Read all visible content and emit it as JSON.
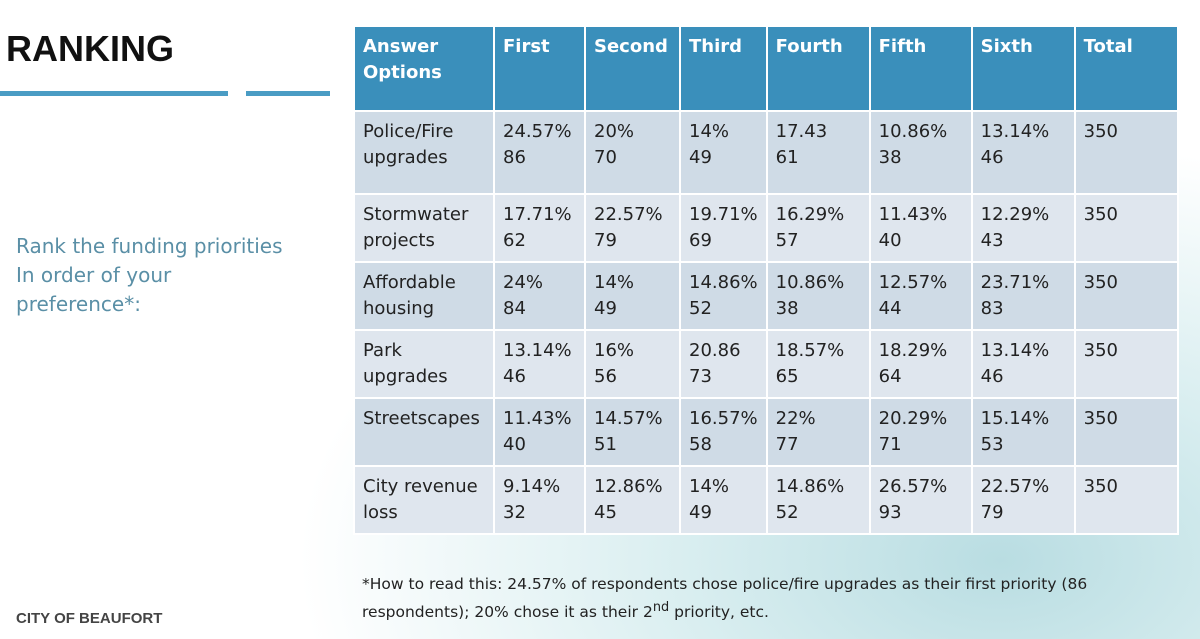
{
  "title": "RANKING",
  "prompt": {
    "lines": [
      "Rank the funding priorities",
      "In order of your",
      "preference*:"
    ]
  },
  "table": {
    "header": [
      "Answer Options",
      "First",
      "Second",
      "Third",
      "Fourth",
      "Fifth",
      "Sixth",
      "Total"
    ],
    "rows": [
      {
        "label": "Police/Fire upgrades",
        "cells": [
          [
            "24.57%",
            "86"
          ],
          [
            "20%",
            "70"
          ],
          [
            "14%",
            "49"
          ],
          [
            "17.43",
            "61"
          ],
          [
            "10.86%",
            "38"
          ],
          [
            "13.14%",
            "46"
          ]
        ],
        "total": "350"
      },
      {
        "label": "Stormwater projects",
        "cells": [
          [
            "17.71%",
            "62"
          ],
          [
            "22.57%",
            "79"
          ],
          [
            "19.71%",
            "69"
          ],
          [
            "16.29%",
            "57"
          ],
          [
            "11.43%",
            "40"
          ],
          [
            "12.29%",
            "43"
          ]
        ],
        "total": "350"
      },
      {
        "label": "Affordable housing",
        "cells": [
          [
            "24%",
            "84"
          ],
          [
            "14%",
            "49"
          ],
          [
            "14.86%",
            "52"
          ],
          [
            "10.86%",
            "38"
          ],
          [
            "12.57%",
            "44"
          ],
          [
            "23.71%",
            "83"
          ]
        ],
        "total": "350"
      },
      {
        "label": "Park upgrades",
        "cells": [
          [
            "13.14%",
            "46"
          ],
          [
            "16%",
            "56"
          ],
          [
            "20.86",
            "73"
          ],
          [
            "18.57%",
            "65"
          ],
          [
            "18.29%",
            "64"
          ],
          [
            "13.14%",
            "46"
          ]
        ],
        "total": "350"
      },
      {
        "label": "Streetscapes",
        "cells": [
          [
            "11.43%",
            "40"
          ],
          [
            "14.57%",
            "51"
          ],
          [
            "16.57%",
            "58"
          ],
          [
            "22%",
            "77"
          ],
          [
            "20.29%",
            "71"
          ],
          [
            "15.14%",
            "53"
          ]
        ],
        "total": "350"
      },
      {
        "label": "City revenue loss",
        "cells": [
          [
            "9.14%",
            "32"
          ],
          [
            "12.86%",
            "45"
          ],
          [
            "14%",
            "49"
          ],
          [
            "14.86%",
            "52"
          ],
          [
            "26.57%",
            "93"
          ],
          [
            "22.57%",
            "79"
          ]
        ],
        "total": "350"
      }
    ]
  },
  "footnote": {
    "before": "*How to read this: 24.57% of respondents chose police/fire upgrades as their first priority (86 respondents); 20% chose it as their 2",
    "sup": "nd",
    "after": " priority, etc."
  },
  "footer": "CITY OF BEAUFORT"
}
